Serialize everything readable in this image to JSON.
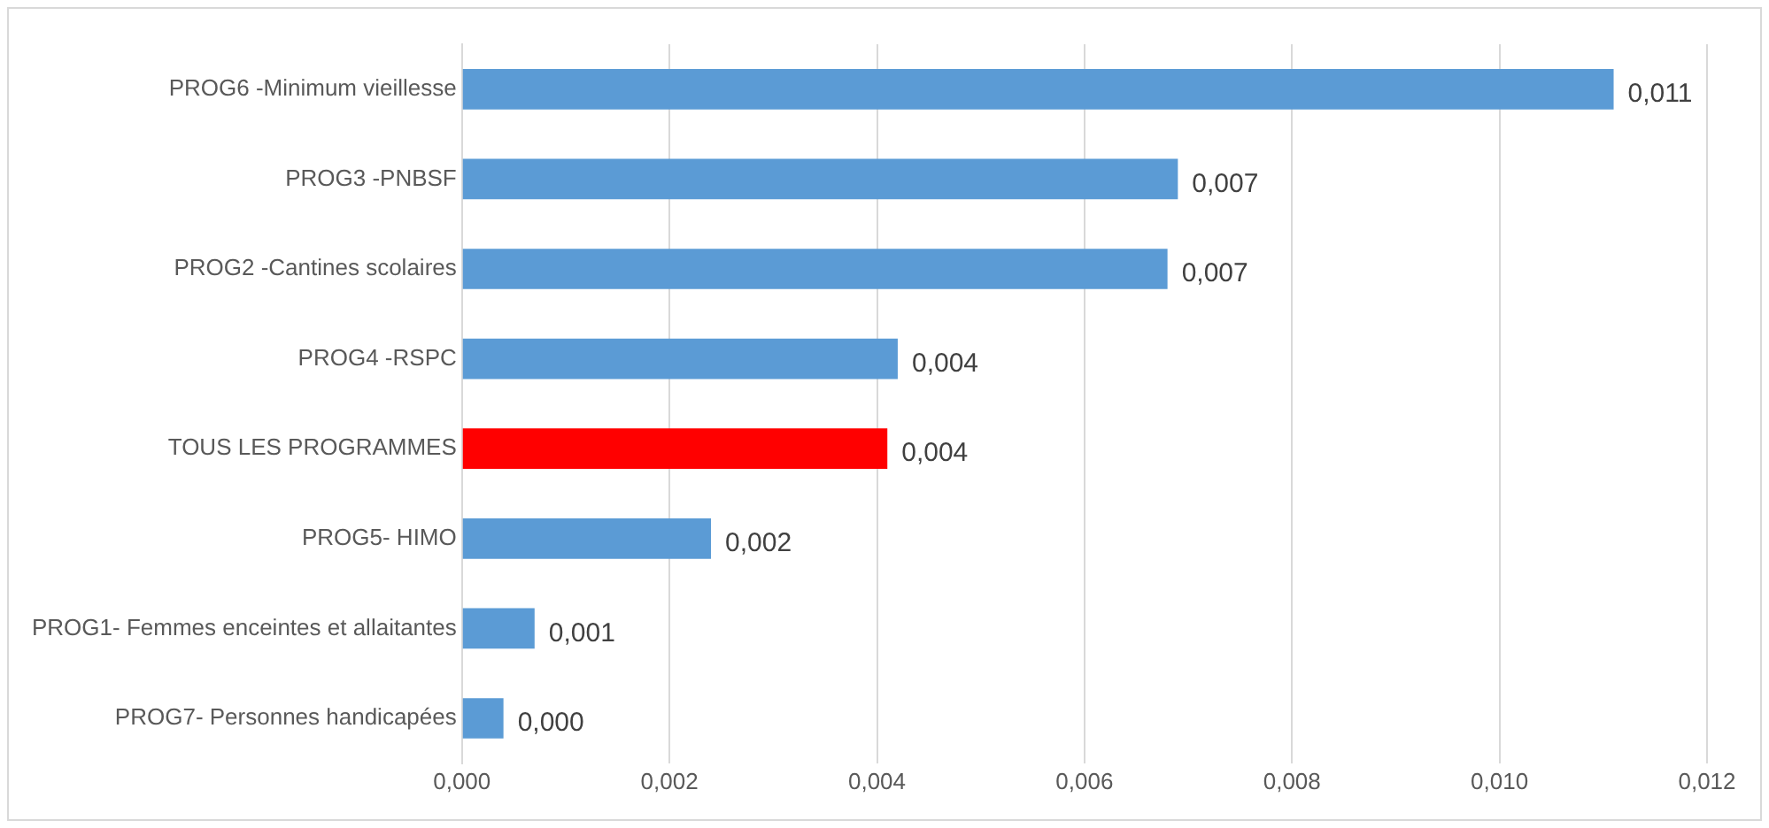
{
  "chart_data": {
    "type": "bar",
    "orientation": "horizontal",
    "categories": [
      "PROG6 -Minimum vieillesse",
      "PROG3 -PNBSF",
      "PROG2 -Cantines scolaires",
      "PROG4 -RSPC",
      "TOUS LES PROGRAMMES",
      "PROG5- HIMO",
      "PROG1- Femmes enceintes et allaitantes",
      "PROG7- Personnes handicapées"
    ],
    "values": [
      0.0111,
      0.0069,
      0.0068,
      0.0042,
      0.0041,
      0.0024,
      0.0007,
      0.0004
    ],
    "colors": [
      "#5b9bd5",
      "#5b9bd5",
      "#5b9bd5",
      "#5b9bd5",
      "#ff0000",
      "#5b9bd5",
      "#5b9bd5",
      "#5b9bd5"
    ],
    "value_labels": [
      "0,011",
      "0,007",
      "0,007",
      "0,004",
      "0,004",
      "0,002",
      "0,001",
      "0,000"
    ],
    "xlim": [
      0,
      0.012
    ],
    "xticks": [
      {
        "value": 0,
        "label": "0,000"
      },
      {
        "value": 0.002,
        "label": "0,002"
      },
      {
        "value": 0.004,
        "label": "0,004"
      },
      {
        "value": 0.006,
        "label": "0,006"
      },
      {
        "value": 0.008,
        "label": "0,008"
      },
      {
        "value": 0.01,
        "label": "0,010"
      },
      {
        "value": 0.012,
        "label": "0,012"
      }
    ],
    "grid": "x",
    "legend": false
  }
}
